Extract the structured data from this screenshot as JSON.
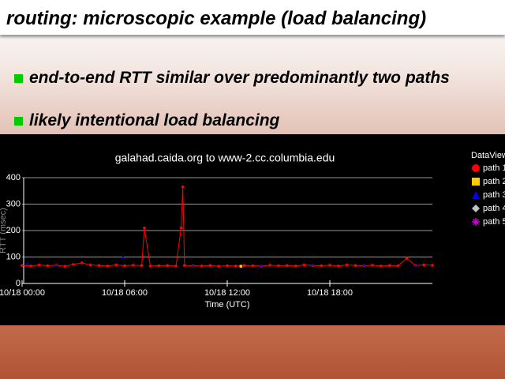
{
  "slide": {
    "title": "routing: microscopic example (load balancing)",
    "bullets": [
      "end-to-end RTT similar over predominantly two paths",
      "likely intentional load balancing"
    ]
  },
  "chart_data": {
    "type": "scatter",
    "title": "galahad.caida.org to www-2.cc.columbia.edu",
    "xlabel": "Time (UTC)",
    "ylabel": "RTT (msec)",
    "legend_title": "DataView",
    "xlim": [
      0,
      24
    ],
    "ylim": [
      0,
      400
    ],
    "xticks": [
      {
        "value": 0,
        "label": "10/18 00:00"
      },
      {
        "value": 6,
        "label": "10/18 06:00"
      },
      {
        "value": 12,
        "label": "10/18 12:00"
      },
      {
        "value": 18,
        "label": "10/18 18:00"
      }
    ],
    "yticks": [
      0,
      100,
      200,
      300,
      400
    ],
    "grid": true,
    "series": [
      {
        "name": "path 1",
        "color": "#ff0000",
        "marker": "circle",
        "x": [
          0,
          0.5,
          1,
          1.5,
          2,
          2.5,
          3,
          3.5,
          4,
          4.5,
          5,
          5.5,
          6,
          6.5,
          7,
          7.15,
          7.5,
          8,
          8.5,
          9,
          9.3,
          9.4,
          9.5,
          10,
          10.5,
          11,
          11.5,
          12,
          12.5,
          13,
          13.5,
          14,
          14.5,
          15,
          15.5,
          16,
          16.5,
          17,
          17.5,
          18,
          18.5,
          19,
          19.5,
          20,
          20.5,
          21,
          21.5,
          22,
          22.5,
          23,
          23.5,
          24
        ],
        "values": [
          68,
          66,
          70,
          67,
          69,
          65,
          72,
          78,
          70,
          68,
          66,
          70,
          67,
          69,
          68,
          210,
          66,
          67,
          68,
          66,
          210,
          365,
          68,
          67,
          66,
          68,
          65,
          67,
          66,
          68,
          67,
          66,
          69,
          67,
          68,
          66,
          70,
          68,
          67,
          69,
          66,
          70,
          68,
          67,
          69,
          66,
          68,
          67,
          95,
          68,
          70,
          69
        ]
      },
      {
        "name": "path 2",
        "color": "#ffcc00",
        "marker": "square",
        "x": [
          12.8
        ],
        "values": [
          65
        ]
      },
      {
        "name": "path 3",
        "color": "#0000ff",
        "marker": "triangle",
        "x": [
          0.3,
          2,
          5.9,
          10,
          14,
          17,
          20,
          23
        ],
        "values": [
          75,
          70,
          100,
          68,
          70,
          72,
          70,
          68
        ]
      },
      {
        "name": "path 4",
        "color": "#c0c0c0",
        "marker": "diamond",
        "x": [],
        "values": []
      },
      {
        "name": "path 5",
        "color": "#cc00cc",
        "marker": "asterisk",
        "x": [],
        "values": []
      }
    ]
  }
}
